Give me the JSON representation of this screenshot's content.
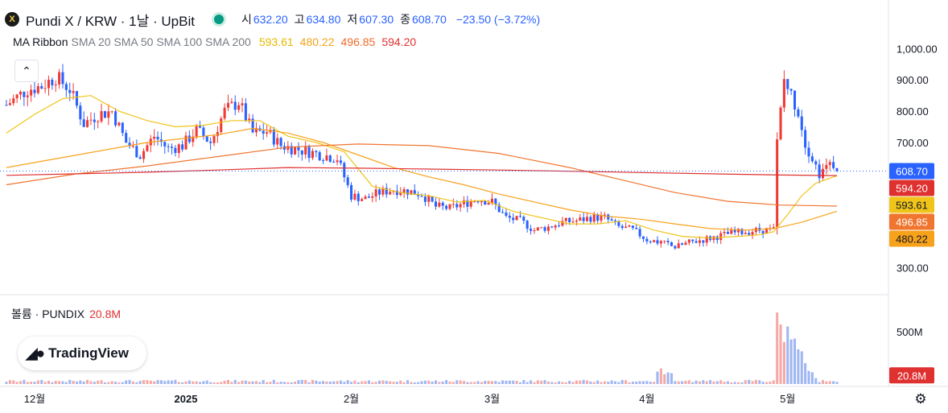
{
  "header": {
    "title": "Pundi X / KRW · 1날 · UpBit",
    "logo_text": "X",
    "ohlc": [
      {
        "key": "시",
        "value": "632.20"
      },
      {
        "key": "고",
        "value": "634.80"
      },
      {
        "key": "저",
        "value": "607.30"
      },
      {
        "key": "종",
        "value": "608.70"
      }
    ],
    "change": "−23.50 (−3.72%)",
    "status_color": "#089981"
  },
  "indicator": {
    "name": "MA Ribbon",
    "params": "SMA 20 SMA 50 SMA 100 SMA 200",
    "values": [
      "593.61",
      "480.22",
      "496.85",
      "594.20"
    ]
  },
  "volume_legend": {
    "label": "볼륨 · PUNDIX",
    "value": "20.8M"
  },
  "watermark": "TradingView",
  "collapse_icon": "chevron-up-icon",
  "settings_icon": "gear-icon",
  "colors": {
    "up": "#ef3b36",
    "down": "#2962ff",
    "sma20": "#f0c419",
    "sma50": "#f7a21b",
    "sma100": "#f0752f",
    "sma200": "#e03131",
    "last_price_badge": "#2962ff",
    "volume_up": "#f4a9a6",
    "volume_down": "#9fb6f2"
  },
  "chart_data": {
    "type": "candlestick",
    "y_axis": {
      "ticks": [
        "1,000.00",
        "900.00",
        "800.00",
        "700.00",
        "300.00"
      ],
      "tick_values": [
        1000,
        900,
        800,
        700,
        300
      ],
      "ylim": [
        255,
        1060
      ],
      "scale": "linear"
    },
    "volume_axis": {
      "ticks": [
        "500M"
      ],
      "tick_values": [
        500000000
      ]
    },
    "x_axis": {
      "labels": [
        "12월",
        "2025",
        "2월",
        "3월",
        "4월",
        "5월"
      ],
      "label_candle_index": [
        8,
        51,
        98,
        138,
        182,
        222
      ]
    },
    "price_badges": [
      {
        "label": "608.70",
        "value": 608.7,
        "color": "#2962ff",
        "text_color": "#ffffff"
      },
      {
        "label": "594.20",
        "value": 594.2,
        "color": "#e03131",
        "text_color": "#ffffff"
      },
      {
        "label": "593.61",
        "value": 593.61,
        "color": "#f0c419",
        "text_color": "#131722"
      },
      {
        "label": "496.85",
        "value": 496.85,
        "color": "#f0752f",
        "text_color": "#ffffff"
      },
      {
        "label": "480.22",
        "value": 480.22,
        "color": "#f7a21b",
        "text_color": "#131722"
      }
    ],
    "volume_badge": {
      "label": "20.8M",
      "color": "#e03131"
    },
    "last_close": 608.7,
    "volume_max": 760000000,
    "close_path": [
      [
        0,
        820
      ],
      [
        6,
        870
      ],
      [
        10,
        880
      ],
      [
        14,
        910
      ],
      [
        18,
        870
      ],
      [
        22,
        760
      ],
      [
        26,
        790
      ],
      [
        30,
        800
      ],
      [
        34,
        700
      ],
      [
        38,
        660
      ],
      [
        42,
        720
      ],
      [
        46,
        680
      ],
      [
        50,
        690
      ],
      [
        54,
        740
      ],
      [
        58,
        700
      ],
      [
        62,
        800
      ],
      [
        66,
        830
      ],
      [
        70,
        730
      ],
      [
        74,
        735
      ],
      [
        78,
        690
      ],
      [
        82,
        680
      ],
      [
        86,
        670
      ],
      [
        90,
        660
      ],
      [
        94,
        650
      ],
      [
        98,
        530
      ],
      [
        102,
        520
      ],
      [
        106,
        540
      ],
      [
        110,
        550
      ],
      [
        114,
        545
      ],
      [
        118,
        535
      ],
      [
        122,
        495
      ],
      [
        126,
        490
      ],
      [
        130,
        505
      ],
      [
        134,
        520
      ],
      [
        138,
        510
      ],
      [
        142,
        460
      ],
      [
        146,
        450
      ],
      [
        150,
        420
      ],
      [
        154,
        430
      ],
      [
        158,
        445
      ],
      [
        162,
        450
      ],
      [
        166,
        460
      ],
      [
        170,
        460
      ],
      [
        174,
        430
      ],
      [
        178,
        420
      ],
      [
        182,
        390
      ],
      [
        186,
        380
      ],
      [
        190,
        365
      ],
      [
        194,
        380
      ],
      [
        198,
        390
      ],
      [
        202,
        400
      ],
      [
        206,
        410
      ],
      [
        210,
        415
      ],
      [
        214,
        420
      ],
      [
        218,
        420
      ],
      [
        219,
        700
      ],
      [
        221,
        900
      ],
      [
        223,
        850
      ],
      [
        225,
        800
      ],
      [
        227,
        700
      ],
      [
        229,
        650
      ],
      [
        231,
        600
      ],
      [
        233,
        640
      ],
      [
        235,
        632
      ],
      [
        236,
        608.7
      ]
    ],
    "series": [
      {
        "name": "SMA 20",
        "color": "#f0c419",
        "points": [
          [
            0,
            730
          ],
          [
            8,
            790
          ],
          [
            16,
            840
          ],
          [
            24,
            850
          ],
          [
            32,
            800
          ],
          [
            40,
            770
          ],
          [
            48,
            750
          ],
          [
            56,
            755
          ],
          [
            64,
            770
          ],
          [
            72,
            770
          ],
          [
            80,
            720
          ],
          [
            88,
            700
          ],
          [
            96,
            670
          ],
          [
            104,
            560
          ],
          [
            112,
            540
          ],
          [
            120,
            530
          ],
          [
            128,
            510
          ],
          [
            136,
            515
          ],
          [
            144,
            480
          ],
          [
            152,
            460
          ],
          [
            160,
            440
          ],
          [
            168,
            440
          ],
          [
            176,
            450
          ],
          [
            184,
            420
          ],
          [
            192,
            400
          ],
          [
            200,
            395
          ],
          [
            208,
            400
          ],
          [
            214,
            405
          ],
          [
            218,
            415
          ],
          [
            222,
            470
          ],
          [
            226,
            530
          ],
          [
            230,
            570
          ],
          [
            236,
            593.61
          ]
        ]
      },
      {
        "name": "SMA 50",
        "color": "#f7a21b",
        "points": [
          [
            0,
            620
          ],
          [
            20,
            660
          ],
          [
            40,
            700
          ],
          [
            60,
            725
          ],
          [
            70,
            745
          ],
          [
            80,
            730
          ],
          [
            90,
            700
          ],
          [
            100,
            660
          ],
          [
            110,
            620
          ],
          [
            120,
            590
          ],
          [
            130,
            565
          ],
          [
            140,
            535
          ],
          [
            150,
            510
          ],
          [
            160,
            485
          ],
          [
            170,
            465
          ],
          [
            180,
            455
          ],
          [
            190,
            440
          ],
          [
            200,
            425
          ],
          [
            210,
            420
          ],
          [
            218,
            425
          ],
          [
            226,
            445
          ],
          [
            236,
            480.22
          ]
        ]
      },
      {
        "name": "SMA 100",
        "color": "#f0752f",
        "points": [
          [
            0,
            565
          ],
          [
            20,
            600
          ],
          [
            40,
            625
          ],
          [
            60,
            655
          ],
          [
            80,
            685
          ],
          [
            100,
            695
          ],
          [
            120,
            690
          ],
          [
            140,
            665
          ],
          [
            160,
            620
          ],
          [
            175,
            580
          ],
          [
            190,
            540
          ],
          [
            205,
            512
          ],
          [
            220,
            500
          ],
          [
            236,
            496.85
          ]
        ]
      },
      {
        "name": "SMA 200",
        "color": "#e03131",
        "points": [
          [
            0,
            595
          ],
          [
            20,
            600
          ],
          [
            40,
            605
          ],
          [
            60,
            612
          ],
          [
            80,
            620
          ],
          [
            100,
            618
          ],
          [
            120,
            615
          ],
          [
            140,
            612
          ],
          [
            160,
            608
          ],
          [
            180,
            604
          ],
          [
            200,
            600
          ],
          [
            220,
            596
          ],
          [
            236,
            594.2
          ]
        ]
      }
    ],
    "grid": false,
    "legend": "top-left"
  }
}
